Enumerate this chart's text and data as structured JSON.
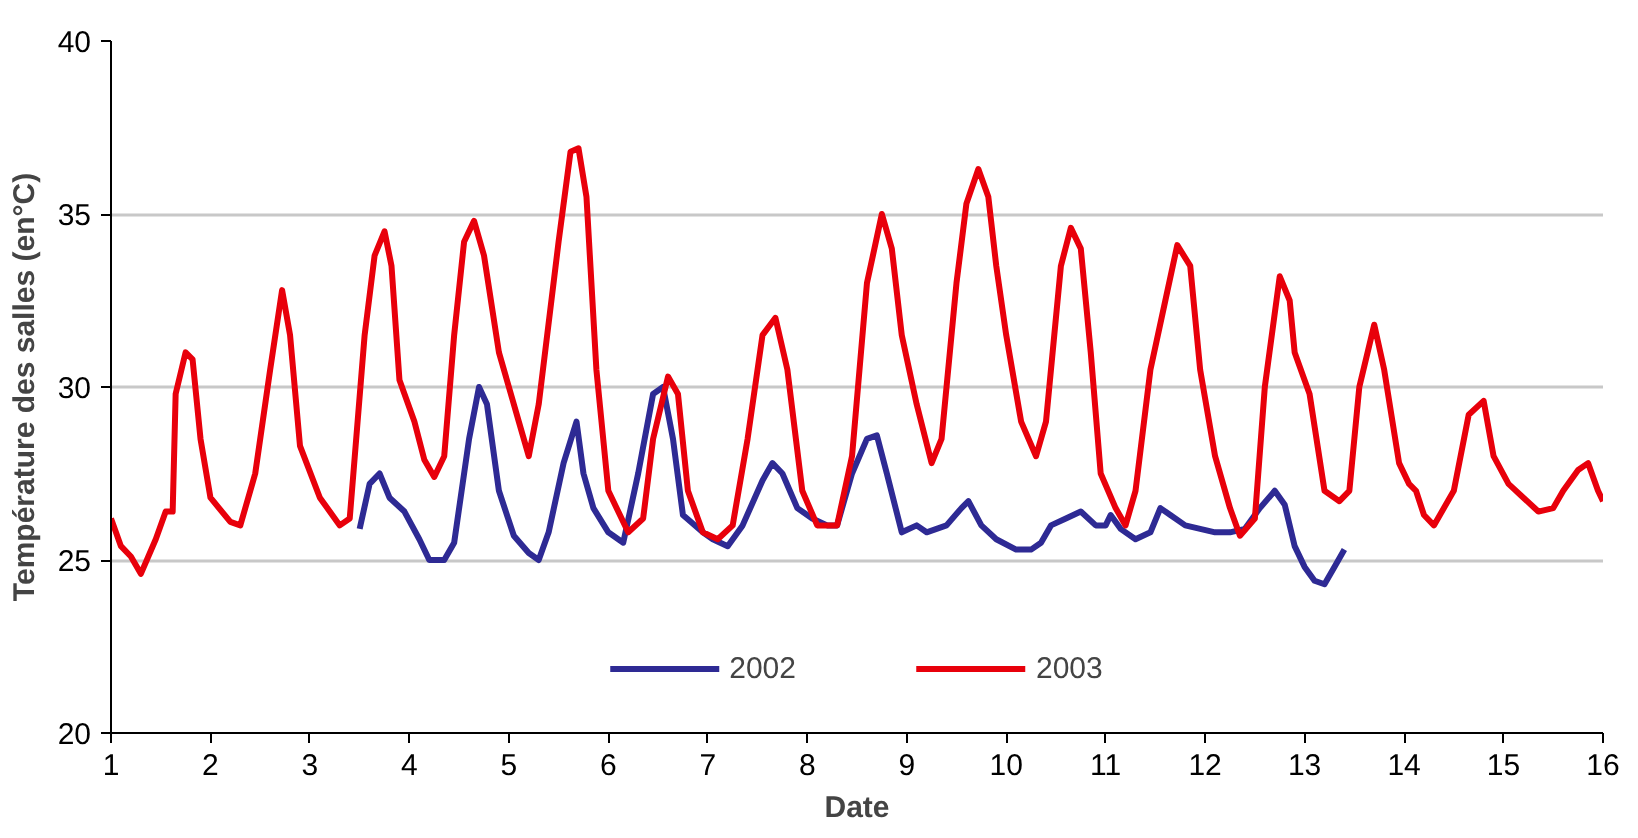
{
  "chart_data": {
    "type": "line",
    "xlabel": "Date",
    "ylabel": "Température des salles (en°C)",
    "xlim": [
      1,
      16
    ],
    "ylim": [
      20,
      40
    ],
    "xticks": [
      1,
      2,
      3,
      4,
      5,
      6,
      7,
      8,
      9,
      10,
      11,
      12,
      13,
      14,
      15,
      16
    ],
    "yticks": [
      20,
      25,
      30,
      35,
      40
    ],
    "grid": "y",
    "legend": "bottom",
    "marker": "none",
    "line_style": "solid",
    "series": [
      {
        "name": "2002",
        "color": "#2e2a94",
        "x": [
          3.5,
          3.6,
          3.7,
          3.8,
          3.95,
          4.1,
          4.2,
          4.35,
          4.45,
          4.6,
          4.7,
          4.78,
          4.9,
          5.05,
          5.2,
          5.3,
          5.4,
          5.55,
          5.68,
          5.75,
          5.85,
          6.0,
          6.15,
          6.3,
          6.45,
          6.55,
          6.65,
          6.75,
          6.95,
          7.05,
          7.2,
          7.35,
          7.55,
          7.65,
          7.75,
          7.9,
          8.05,
          8.2,
          8.3,
          8.45,
          8.6,
          8.7,
          8.8,
          8.95,
          9.1,
          9.2,
          9.4,
          9.55,
          9.62,
          9.75,
          9.9,
          10.1,
          10.25,
          10.35,
          10.45,
          10.6,
          10.75,
          10.9,
          11.0,
          11.05,
          11.15,
          11.3,
          11.45,
          11.55,
          11.65,
          11.8,
          11.95,
          12.1,
          12.25,
          12.4,
          12.55,
          12.7,
          12.8,
          12.9,
          13.0,
          13.1,
          13.2,
          13.3,
          13.4
        ],
        "values": [
          25.9,
          27.2,
          27.5,
          26.8,
          26.4,
          25.6,
          25.0,
          25.0,
          25.5,
          28.5,
          30.0,
          29.5,
          27.0,
          25.7,
          25.2,
          25.0,
          25.8,
          27.8,
          29.0,
          27.5,
          26.5,
          25.8,
          25.5,
          27.5,
          29.8,
          30.0,
          28.5,
          26.3,
          25.8,
          25.6,
          25.4,
          26.0,
          27.3,
          27.8,
          27.5,
          26.5,
          26.2,
          26.0,
          26.0,
          27.5,
          28.5,
          28.6,
          27.5,
          25.8,
          26.0,
          25.8,
          26.0,
          26.5,
          26.7,
          26.0,
          25.6,
          25.3,
          25.3,
          25.5,
          26.0,
          26.2,
          26.4,
          26.0,
          26.0,
          26.3,
          25.9,
          25.6,
          25.8,
          26.5,
          26.3,
          26.0,
          25.9,
          25.8,
          25.8,
          25.9,
          26.5,
          27.0,
          26.6,
          25.4,
          24.8,
          24.4,
          24.3,
          24.8,
          25.3
        ]
      },
      {
        "name": "2003",
        "color": "#e8000b",
        "x": [
          1.0,
          1.1,
          1.2,
          1.3,
          1.45,
          1.55,
          1.62,
          1.65,
          1.75,
          1.82,
          1.9,
          2.0,
          2.2,
          2.3,
          2.45,
          2.6,
          2.72,
          2.8,
          2.9,
          3.1,
          3.3,
          3.4,
          3.55,
          3.65,
          3.75,
          3.82,
          3.9,
          4.05,
          4.15,
          4.25,
          4.35,
          4.45,
          4.55,
          4.65,
          4.75,
          4.9,
          5.1,
          5.2,
          5.3,
          5.5,
          5.62,
          5.7,
          5.78,
          5.88,
          6.0,
          6.2,
          6.35,
          6.45,
          6.6,
          6.7,
          6.8,
          6.95,
          7.1,
          7.25,
          7.4,
          7.55,
          7.68,
          7.8,
          7.95,
          8.1,
          8.3,
          8.45,
          8.6,
          8.75,
          8.85,
          8.95,
          9.1,
          9.25,
          9.35,
          9.5,
          9.6,
          9.72,
          9.82,
          9.9,
          10.0,
          10.15,
          10.3,
          10.4,
          10.55,
          10.65,
          10.75,
          10.85,
          10.95,
          11.1,
          11.2,
          11.3,
          11.45,
          11.6,
          11.72,
          11.85,
          11.95,
          12.1,
          12.25,
          12.35,
          12.5,
          12.6,
          12.75,
          12.85,
          12.9,
          13.05,
          13.2,
          13.35,
          13.45,
          13.55,
          13.7,
          13.8,
          13.95,
          14.05,
          14.12,
          14.2,
          14.3,
          14.5,
          14.65,
          14.8,
          14.9,
          15.05,
          15.2,
          15.35,
          15.5,
          15.6,
          15.75,
          15.85,
          15.95,
          16.0
        ],
        "values": [
          26.2,
          25.4,
          25.1,
          24.6,
          25.6,
          26.4,
          26.4,
          29.8,
          31.0,
          30.8,
          28.5,
          26.8,
          26.1,
          26.0,
          27.5,
          30.5,
          32.8,
          31.5,
          28.3,
          26.8,
          26.0,
          26.2,
          31.5,
          33.8,
          34.5,
          33.5,
          30.2,
          29.0,
          27.9,
          27.4,
          28.0,
          31.5,
          34.2,
          34.8,
          33.8,
          31.0,
          29.0,
          28.0,
          29.5,
          34.2,
          36.8,
          36.9,
          35.5,
          30.5,
          27.0,
          25.8,
          26.2,
          28.5,
          30.3,
          29.8,
          27.0,
          25.8,
          25.6,
          26.0,
          28.5,
          31.5,
          32.0,
          30.5,
          27.0,
          26.0,
          26.0,
          28.0,
          33.0,
          35.0,
          34.0,
          31.5,
          29.5,
          27.8,
          28.5,
          33.0,
          35.3,
          36.3,
          35.5,
          33.5,
          31.5,
          29.0,
          28.0,
          29.0,
          33.5,
          34.6,
          34.0,
          31.0,
          27.5,
          26.5,
          26.0,
          27.0,
          30.5,
          32.5,
          34.1,
          33.5,
          30.5,
          28.0,
          26.5,
          25.7,
          26.2,
          30.0,
          33.2,
          32.5,
          31.0,
          29.8,
          27.0,
          26.7,
          27.0,
          30.0,
          31.8,
          30.5,
          27.8,
          27.2,
          27.0,
          26.3,
          26.0,
          27.0,
          29.2,
          29.6,
          28.0,
          27.2,
          26.8,
          26.4,
          26.5,
          27.0,
          27.6,
          27.8,
          27.0,
          26.7
        ]
      }
    ]
  }
}
